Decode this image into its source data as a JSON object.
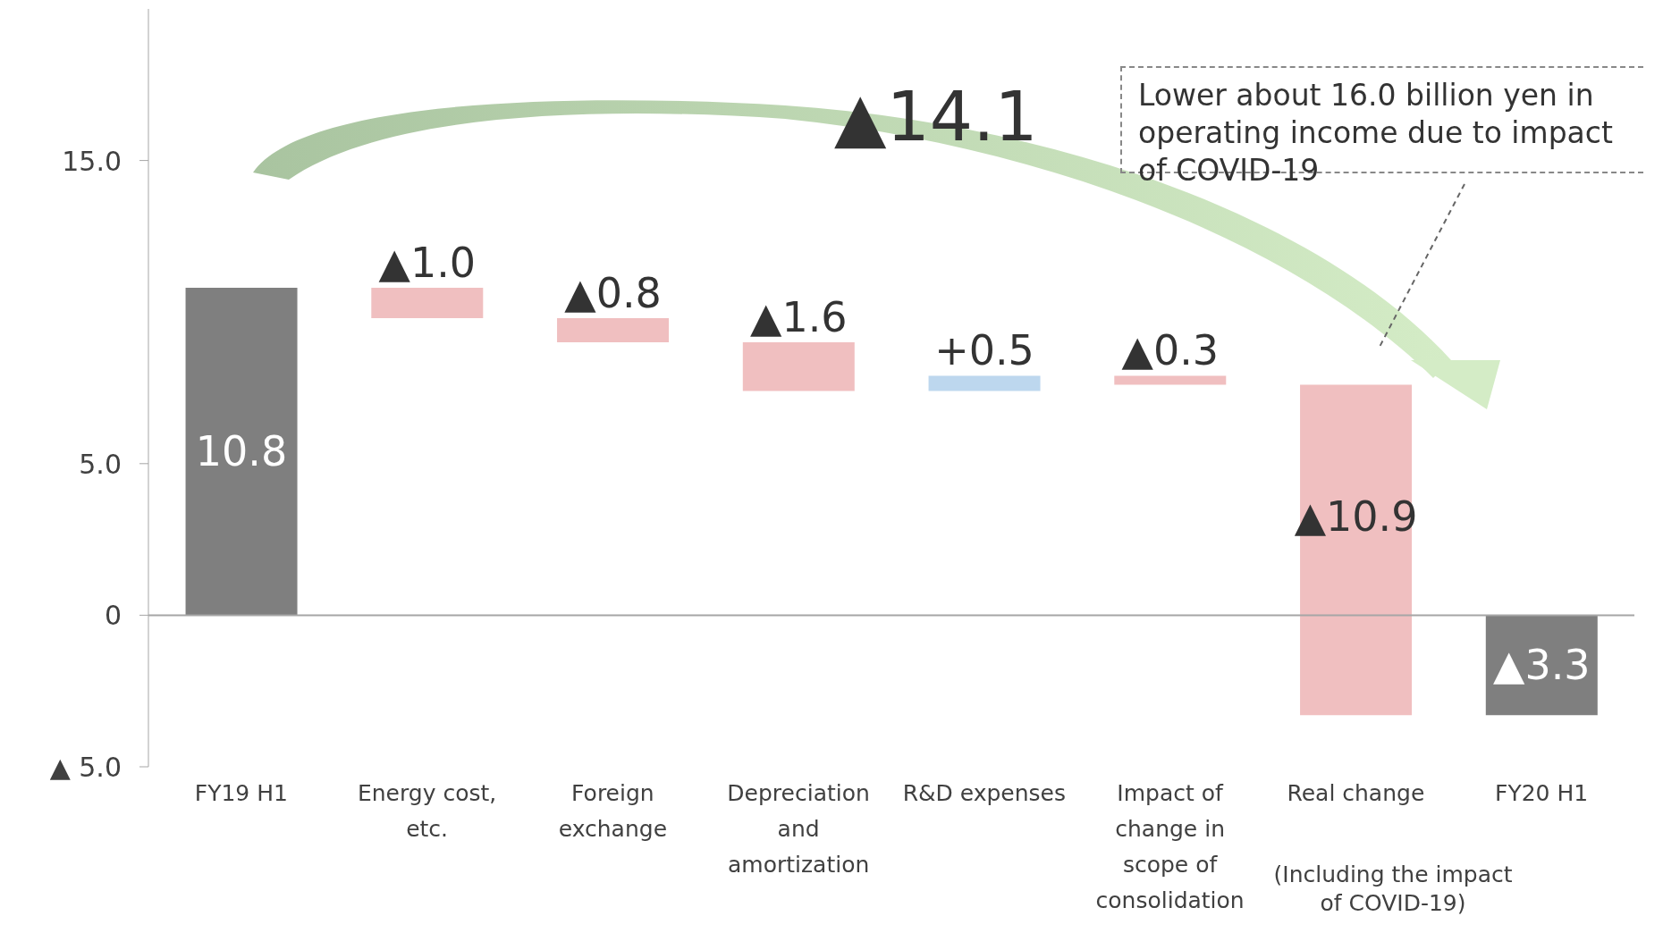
{
  "chart_data": {
    "type": "bar",
    "categories": [
      "FY19 H1",
      "Energy cost, etc.",
      "Foreign exchange",
      "Depreciation and amortization",
      "R&D expenses",
      "Impact of change in scope of consolidation",
      "Real change",
      "FY20 H1"
    ],
    "values": [
      10.8,
      -1.0,
      -0.8,
      -1.6,
      0.5,
      -0.3,
      -10.9,
      -3.3
    ],
    "base": [
      0,
      10.8,
      9.8,
      9.0,
      7.4,
      7.9,
      7.6,
      0
    ],
    "colors": [
      "#7f7f7f",
      "#f0bfc0",
      "#f0bfc0",
      "#f0bfc0",
      "#bdd7ee",
      "#f0bfc0",
      "#f0bfc0",
      "#7f7f7f"
    ],
    "value_labels": [
      "10.8",
      "▲1.0",
      "▲0.8",
      "▲1.6",
      "+0.5",
      "▲0.3",
      "▲10.9",
      "▲3.3"
    ],
    "ylim": [
      -5,
      20
    ],
    "yticks": [
      {
        "value": -5,
        "label": "▲ 5.0"
      },
      {
        "value": 0,
        "label": "0"
      },
      {
        "value": 5,
        "label": "5.0"
      },
      {
        "value": 15,
        "label": "15.0"
      }
    ],
    "ref_lines": [
      {
        "axis": "y",
        "value": 0,
        "color": "#a6a6a6"
      }
    ],
    "annotations": [
      "▲14.1",
      "Lower about 16.0 billion yen in operating income due to impact of COVID-19",
      "(Including the impact of COVID-19)"
    ],
    "grid": false,
    "legend": false
  }
}
